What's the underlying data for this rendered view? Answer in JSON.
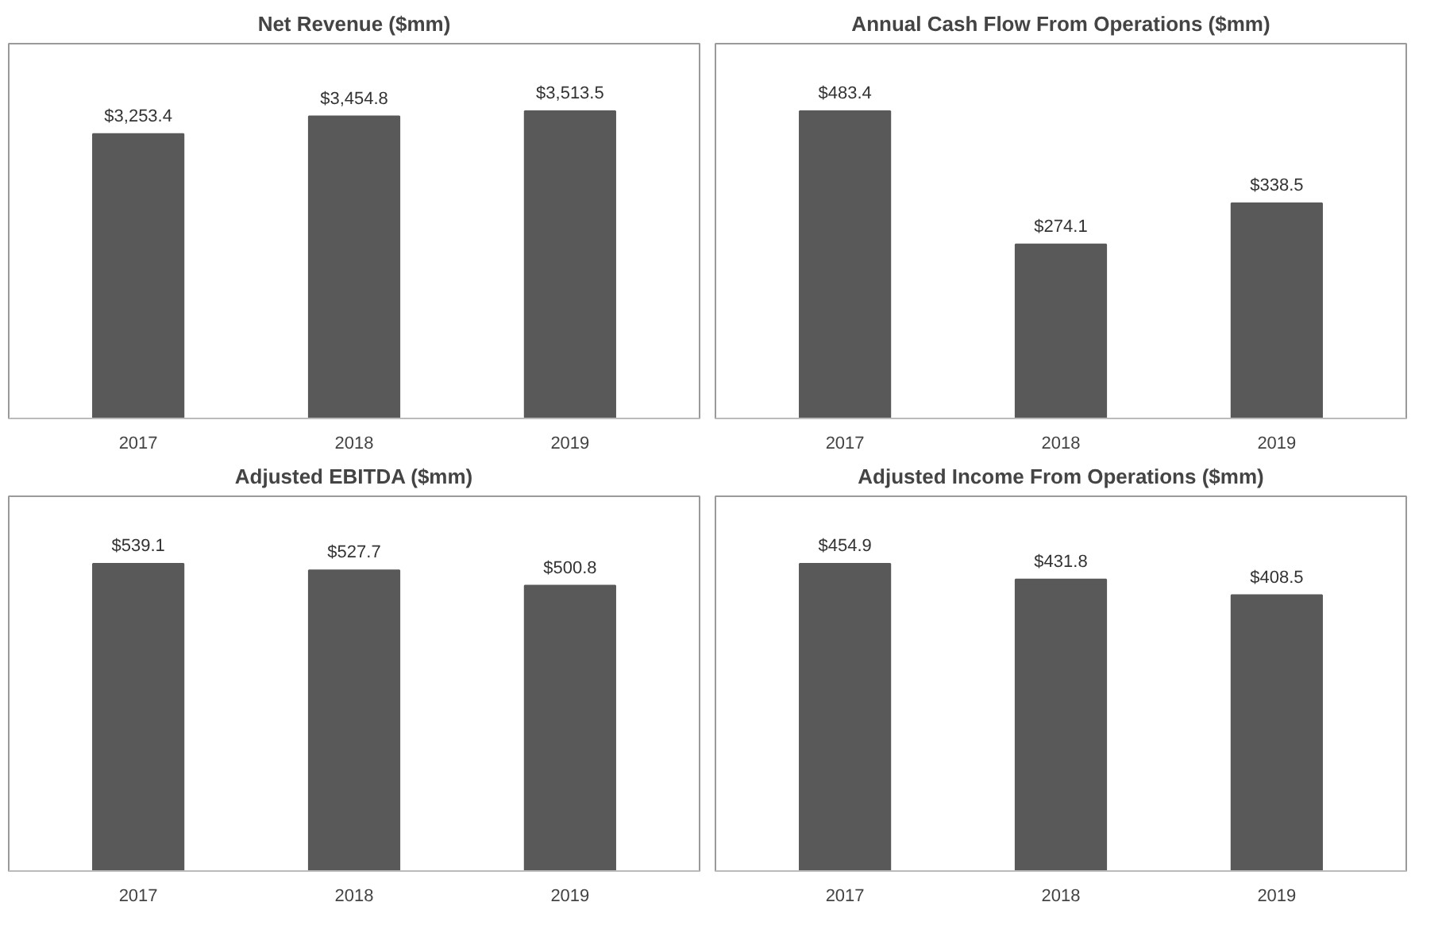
{
  "chart_data": [
    {
      "type": "bar",
      "title": "Net Revenue ($mm)",
      "categories": [
        "2017",
        "2018",
        "2019"
      ],
      "values": [
        3253.4,
        3454.8,
        3513.5
      ],
      "value_labels": [
        "$3,253.4",
        "$3,454.8",
        "$3,513.5"
      ],
      "color": "#595959",
      "grid": false,
      "tick_labels": "x"
    },
    {
      "type": "bar",
      "title": "Annual Cash Flow From Operations ($mm)",
      "categories": [
        "2017",
        "2018",
        "2019"
      ],
      "values": [
        483.4,
        274.1,
        338.5
      ],
      "value_labels": [
        "$483.4",
        "$274.1",
        "$338.5"
      ],
      "color": "#595959",
      "grid": false,
      "tick_labels": "x"
    },
    {
      "type": "bar",
      "title": "Adjusted EBITDA ($mm)",
      "categories": [
        "2017",
        "2018",
        "2019"
      ],
      "values": [
        539.1,
        527.7,
        500.8
      ],
      "value_labels": [
        "$539.1",
        "$527.7",
        "$500.8"
      ],
      "color": "#595959",
      "grid": false,
      "tick_labels": "x"
    },
    {
      "type": "bar",
      "title": "Adjusted Income From Operations ($mm)",
      "categories": [
        "2017",
        "2018",
        "2019"
      ],
      "values": [
        454.9,
        431.8,
        408.5
      ],
      "value_labels": [
        "$454.9",
        "$431.8",
        "$408.5"
      ],
      "color": "#595959",
      "grid": false,
      "tick_labels": "x"
    }
  ]
}
